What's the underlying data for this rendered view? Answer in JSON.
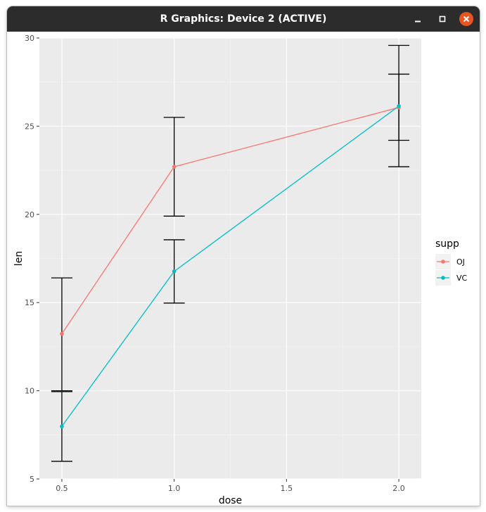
{
  "window": {
    "title": "R Graphics: Device 2 (ACTIVE)",
    "controls": {
      "minimize_icon": "minimize-icon",
      "maximize_icon": "maximize-icon",
      "close_icon": "close-icon",
      "close_color": "#e95420"
    }
  },
  "chart_data": {
    "type": "line",
    "x": [
      0.5,
      1.0,
      2.0
    ],
    "xlabel": "dose",
    "ylabel": "len",
    "xlim": [
      0.4,
      2.1
    ],
    "ylim": [
      5,
      30
    ],
    "xticks": [
      0.5,
      1.0,
      1.5,
      2.0
    ],
    "xtick_labels": [
      "0.5",
      "1.0",
      "1.5",
      "2.0"
    ],
    "yticks": [
      5,
      10,
      15,
      20,
      25,
      30
    ],
    "ytick_labels": [
      "5",
      "10",
      "15",
      "20",
      "25",
      "30"
    ],
    "grid": true,
    "panel_background": "#ebebeb",
    "legend": {
      "title": "supp",
      "position": "right"
    },
    "series": [
      {
        "name": "OJ",
        "color": "#f8766d",
        "values": [
          13.23,
          22.7,
          26.06
        ],
        "lower": [
          10.0,
          19.9,
          24.2
        ],
        "upper": [
          16.4,
          25.5,
          27.95
        ]
      },
      {
        "name": "VC",
        "color": "#00bfc4",
        "values": [
          7.98,
          16.77,
          26.14
        ],
        "lower": [
          6.0,
          14.97,
          22.7
        ],
        "upper": [
          9.95,
          18.56,
          29.58
        ]
      }
    ]
  }
}
